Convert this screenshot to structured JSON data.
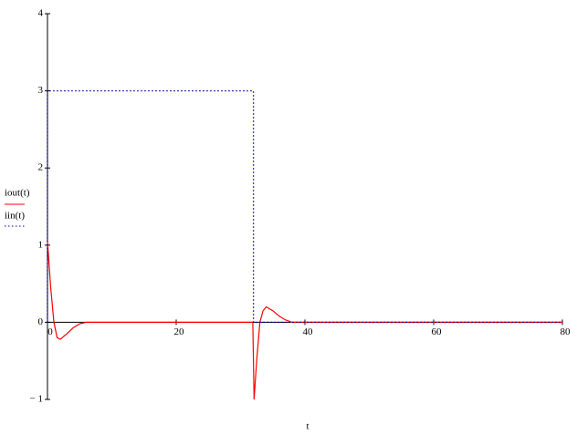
{
  "chart_data": {
    "type": "line",
    "xlabel": "t",
    "series": [
      {
        "name": "iout(t)",
        "color": "#ff0000",
        "dash": "solid",
        "x": [
          0,
          0.5,
          1,
          1.5,
          2,
          3,
          4,
          5,
          6,
          7,
          31.9,
          32.1,
          32.5,
          33,
          33.5,
          34,
          35,
          36,
          37,
          38,
          40,
          80
        ],
        "values": [
          1.05,
          0.45,
          0,
          -0.2,
          -0.22,
          -0.15,
          -0.07,
          -0.02,
          0,
          0,
          0,
          -1,
          -0.5,
          0,
          0.15,
          0.2,
          0.15,
          0.08,
          0.03,
          0,
          0,
          0
        ]
      },
      {
        "name": "iin(t)",
        "color": "#0000a0",
        "dash": "dotted",
        "x": [
          0,
          0,
          32,
          32,
          80
        ],
        "values": [
          0,
          3,
          3,
          0,
          0
        ]
      }
    ],
    "xlim": [
      0,
      80
    ],
    "xticks": [
      0,
      20,
      40,
      60,
      80
    ],
    "ylim": [
      -1,
      4
    ],
    "yticks": [
      {
        "value": -1,
        "label": "− 1"
      },
      0,
      1,
      2,
      3,
      4
    ]
  }
}
